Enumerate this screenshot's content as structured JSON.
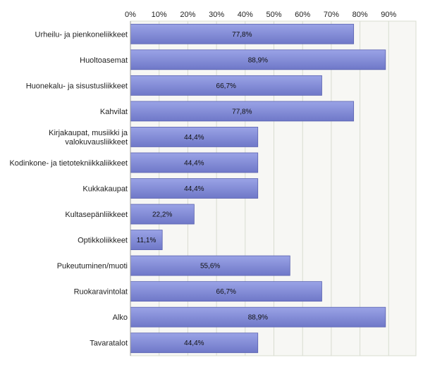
{
  "chart_data": {
    "type": "bar",
    "orientation": "horizontal",
    "categories": [
      [
        "Urheilu- ja pienkoneliikkeet"
      ],
      [
        "Huoltoasemat"
      ],
      [
        "Huonekalu- ja sisustusliikkeet"
      ],
      [
        "Kahvilat"
      ],
      [
        "Kirjakaupat, musiikki ja",
        "valokuvausliikkeet"
      ],
      [
        "Kodinkone- ja tietotekniikkaliikkeet"
      ],
      [
        "Kukkakaupat"
      ],
      [
        "Kultasepänliikkeet"
      ],
      [
        "Optikkoliikkeet"
      ],
      [
        "Pukeutuminen/muoti"
      ],
      [
        "Ruokaravintolat"
      ],
      [
        "Alko"
      ],
      [
        "Tavaratalot"
      ]
    ],
    "values": [
      77.8,
      88.9,
      66.7,
      77.8,
      44.4,
      44.4,
      44.4,
      22.2,
      11.1,
      55.6,
      66.7,
      88.9,
      44.4
    ],
    "value_labels": [
      "77,8%",
      "88,9%",
      "66,7%",
      "77,8%",
      "44,4%",
      "44,4%",
      "44,4%",
      "22,2%",
      "11,1%",
      "55,6%",
      "66,7%",
      "88,9%",
      "44,4%"
    ],
    "xticks": [
      "0%",
      "10%",
      "20%",
      "30%",
      "40%",
      "50%",
      "60%",
      "70%",
      "80%",
      "90%"
    ],
    "xlim": [
      0,
      100
    ],
    "grid": true,
    "xaxis_position": "top",
    "title": "",
    "xlabel": "",
    "ylabel": "",
    "colors": {
      "bar_top": "#9aa3e6",
      "bar_bottom": "#6f78c8",
      "bar_border": "#5a62b0",
      "grid": "#d8dcd0",
      "plot_bg": "#f7f7f4",
      "axis": "#999999"
    }
  }
}
